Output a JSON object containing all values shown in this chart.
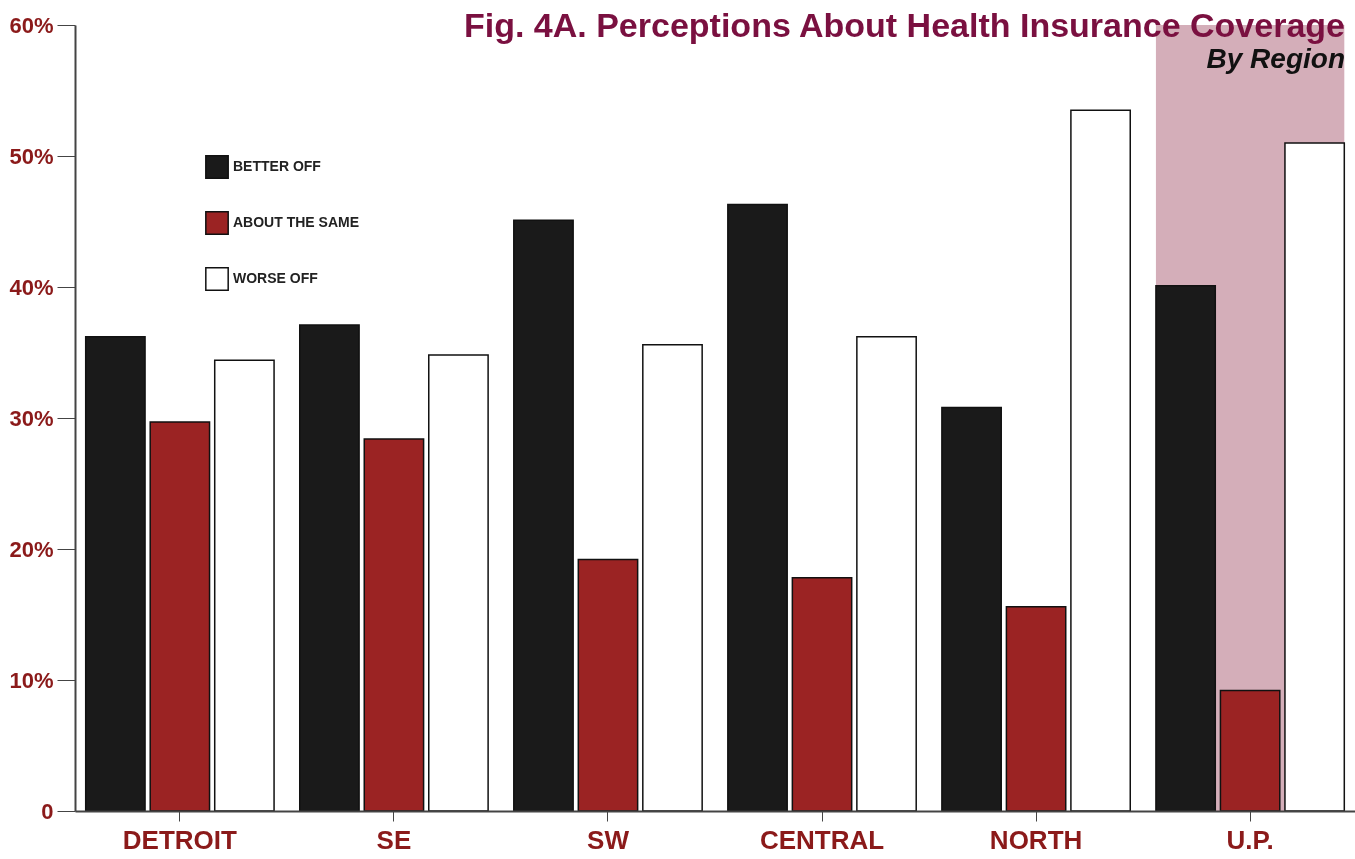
{
  "chart_data": {
    "type": "bar",
    "title": "Fig. 4A. Perceptions About Health Insurance Coverage",
    "subtitle": "By Region",
    "categories": [
      "DETROIT",
      "SE",
      "SW",
      "CENTRAL",
      "NORTH",
      "U.P."
    ],
    "series": [
      {
        "name": "BETTER OFF",
        "color": "#1a1a1a",
        "values": [
          36.2,
          37.1,
          45.1,
          46.3,
          30.8,
          40.1
        ]
      },
      {
        "name": "ABOUT THE SAME",
        "color": "#9b2323",
        "values": [
          29.7,
          28.4,
          19.2,
          17.8,
          15.6,
          9.2
        ]
      },
      {
        "name": "WORSE OFF",
        "color": "#ffffff",
        "values": [
          34.4,
          34.8,
          35.6,
          36.2,
          53.5,
          51.0
        ]
      }
    ],
    "ylim": [
      0,
      60
    ],
    "yticks": [
      0,
      {
        "value": 10,
        "label": "10%"
      },
      {
        "value": 20,
        "label": "20%"
      },
      {
        "value": 30,
        "label": "30%"
      },
      {
        "value": 40,
        "label": "40%"
      },
      {
        "value": 50,
        "label": "50%"
      },
      {
        "value": 60,
        "label": "60%"
      }
    ],
    "bands": [
      {
        "axis": "x",
        "from": "U.P.",
        "to": "U.P.",
        "color": "#c99aa8"
      }
    ],
    "grid": false,
    "legend": "top left"
  }
}
